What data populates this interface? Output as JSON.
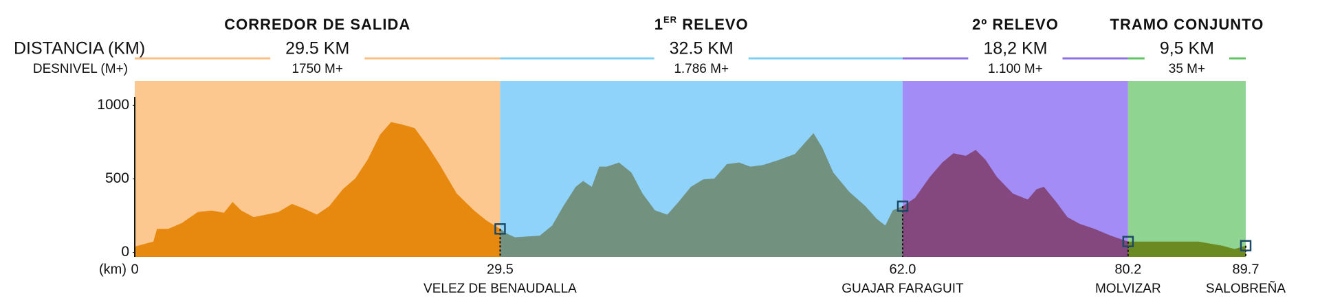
{
  "chart_data": {
    "type": "area",
    "distance_label": "DISTANCIA (KM)",
    "elevation_label": "DESNIVEL (M+)",
    "x_axis_label": "(km)",
    "segments": [
      {
        "name": "CORREDOR DE SALIDA",
        "distance": "29.5 KM",
        "desnivel": "1750 M+",
        "title_color": "#b5a232",
        "line_color": "#f9bf80",
        "background": "#fdc890",
        "area_color": "#e8890f"
      },
      {
        "name": "1",
        "name_superscript": "ER",
        "name_after": " RELEVO",
        "distance": "32.5 KM",
        "desnivel": "1.786 M+",
        "title_color": "#1aaccc",
        "line_color": "#7ccff3",
        "background": "#8fd3fb",
        "area_color": "#73917f"
      },
      {
        "name": "2º RELEVO",
        "distance": "18,2 KM",
        "desnivel": "1.100 M+",
        "title_color": "#3a54c0",
        "line_color": "#8c6ee6",
        "background": "#a48cf7",
        "area_color": "#84477e"
      },
      {
        "name": "TRAMO CONJUNTO",
        "distance": "9,5 KM",
        "desnivel": "35 M+",
        "title_color": "#2fb33c",
        "line_color": "#5dc560",
        "background": "#8fd591",
        "area_color": "#6b8b22"
      }
    ],
    "x": [
      0,
      1.5,
      1.8,
      2.7,
      3.8,
      5.1,
      6.2,
      7.2,
      7.9,
      8.6,
      9.6,
      10.6,
      11.6,
      12.7,
      13.7,
      14.7,
      15.7,
      16.8,
      17.8,
      18.8,
      19.8,
      20.7,
      21.6,
      22.6,
      23.6,
      24.6,
      26,
      27.4,
      28.4,
      29.5,
      30.1,
      30.7,
      32.7,
      33.7,
      34.6,
      35.6,
      36.2,
      36.9,
      37.5,
      38.1,
      39.1,
      40.1,
      41,
      42,
      43,
      43.9,
      44.9,
      45.9,
      46.8,
      47.8,
      48.8,
      49.7,
      50.7,
      52,
      53.3,
      54.2,
      54.8,
      55.5,
      56.4,
      57.7,
      59,
      59.9,
      60.6,
      61.2,
      62,
      63,
      64.2,
      65.2,
      66.1,
      67.1,
      67.9,
      68.7,
      69.6,
      70.9,
      72.1,
      72.8,
      73.4,
      74.4,
      75.3,
      76.3,
      77.5,
      78.8,
      80.2,
      81.5,
      85.9,
      87.8,
      88.8,
      89.7
    ],
    "values": [
      40,
      74,
      160,
      160,
      200,
      275,
      285,
      270,
      343,
      285,
      240,
      257,
      275,
      330,
      297,
      257,
      314,
      430,
      503,
      630,
      800,
      886,
      869,
      845,
      730,
      600,
      400,
      285,
      217,
      160,
      126,
      103,
      114,
      183,
      314,
      446,
      486,
      446,
      583,
      583,
      611,
      543,
      400,
      286,
      257,
      343,
      446,
      497,
      503,
      600,
      611,
      583,
      594,
      629,
      669,
      754,
      811,
      714,
      543,
      411,
      314,
      229,
      183,
      286,
      314,
      371,
      514,
      611,
      674,
      657,
      697,
      629,
      514,
      400,
      360,
      429,
      446,
      343,
      240,
      194,
      160,
      114,
      74,
      74,
      74,
      46,
      23,
      46
    ],
    "xlim": [
      0,
      89.7
    ],
    "xticks": [
      0,
      29.5,
      {
        "value": 62,
        "label": "62.0"
      },
      80.2,
      89.7
    ],
    "x_labels": [
      null,
      "VELEZ DE BENAUDALLA",
      "GUAJAR FARAGUIT",
      "MOLVIZAR",
      "SALOBREÑA"
    ],
    "ylim": [
      -30,
      1165
    ],
    "yticks": [
      0,
      500,
      1000
    ],
    "station_color": "#1d4a66"
  }
}
